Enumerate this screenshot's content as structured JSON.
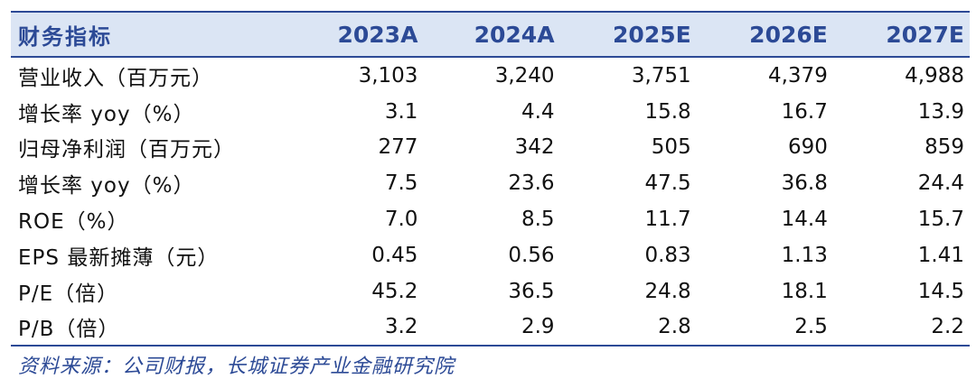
{
  "table": {
    "headers": [
      "财务指标",
      "2023A",
      "2024A",
      "2025E",
      "2026E",
      "2027E"
    ],
    "rows": [
      {
        "label": "营业收入（百万元）",
        "values": [
          "3,103",
          "3,240",
          "3,751",
          "4,379",
          "4,988"
        ]
      },
      {
        "label": "增长率 yoy（%）",
        "values": [
          "3.1",
          "4.4",
          "15.8",
          "16.7",
          "13.9"
        ]
      },
      {
        "label": "归母净利润（百万元）",
        "values": [
          "277",
          "342",
          "505",
          "690",
          "859"
        ]
      },
      {
        "label": "增长率 yoy（%）",
        "values": [
          "7.5",
          "23.6",
          "47.5",
          "36.8",
          "24.4"
        ]
      },
      {
        "label": "ROE（%）",
        "values": [
          "7.0",
          "8.5",
          "11.7",
          "14.4",
          "15.7"
        ]
      },
      {
        "label": "EPS 最新摊薄（元）",
        "values": [
          "0.45",
          "0.56",
          "0.83",
          "1.13",
          "1.41"
        ]
      },
      {
        "label": "P/E（倍）",
        "values": [
          "45.2",
          "36.5",
          "24.8",
          "18.1",
          "14.5"
        ]
      },
      {
        "label": "P/B（倍）",
        "values": [
          "3.2",
          "2.9",
          "2.8",
          "2.5",
          "2.2"
        ]
      }
    ]
  },
  "source": "资料来源：公司财报，长城证券产业金融研究院",
  "colors": {
    "header_text": "#2c4a96",
    "header_bg": "#dbe5f4",
    "rule": "#2c4a96",
    "body_text": "#111111"
  }
}
